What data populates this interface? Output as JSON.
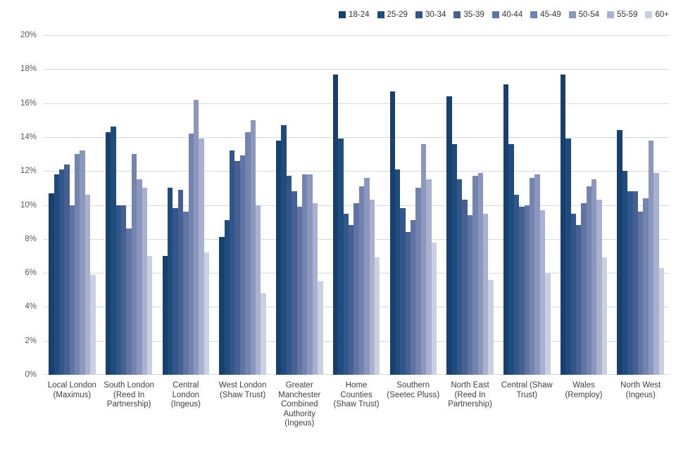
{
  "chart_data": {
    "type": "bar",
    "title": "",
    "xlabel": "",
    "ylabel": "",
    "ylim": [
      0,
      20
    ],
    "ytick_step": 2,
    "ytick_suffix": "%",
    "grid": true,
    "legend_position": "top-right",
    "gridline_color": "#d9d9d9",
    "categories": [
      "Local London (Maximus)",
      "South London (Reed In Partnership)",
      "Central London (Ingeus)",
      "West London (Shaw Trust)",
      "Greater Manchester Combined Authority (Ingeus)",
      "Home Counties (Shaw Trust)",
      "Southern (Seetec Pluss)",
      "North East (Reed In Partnership)",
      "Central (Shaw Trust)",
      "Wales (Remploy)",
      "North West (Ingeus)"
    ],
    "series": [
      {
        "name": "18-24",
        "color": "#17406e",
        "values": [
          10.7,
          14.3,
          7.0,
          8.1,
          13.8,
          17.7,
          16.7,
          16.4,
          17.1,
          17.7,
          14.4
        ]
      },
      {
        "name": "25-29",
        "color": "#1e4c7c",
        "values": [
          11.8,
          14.6,
          11.0,
          9.1,
          14.7,
          13.9,
          12.1,
          13.6,
          13.6,
          13.9,
          12.0
        ]
      },
      {
        "name": "30-34",
        "color": "#30568c",
        "values": [
          12.1,
          10.0,
          9.8,
          13.2,
          11.7,
          9.5,
          9.8,
          11.5,
          10.6,
          9.5,
          10.8
        ]
      },
      {
        "name": "35-39",
        "color": "#47608f",
        "values": [
          12.4,
          10.0,
          10.9,
          12.6,
          10.8,
          8.8,
          8.4,
          10.3,
          9.9,
          8.8,
          10.8
        ]
      },
      {
        "name": "40-44",
        "color": "#5f73a5",
        "values": [
          10.0,
          8.6,
          9.6,
          12.9,
          9.9,
          10.1,
          9.1,
          9.4,
          10.0,
          10.1,
          9.6
        ]
      },
      {
        "name": "45-49",
        "color": "#7384ae",
        "values": [
          13.0,
          13.0,
          14.2,
          14.3,
          11.8,
          11.1,
          11.0,
          11.7,
          11.6,
          11.1,
          10.4
        ]
      },
      {
        "name": "50-54",
        "color": "#8b97bd",
        "values": [
          13.2,
          11.5,
          16.2,
          15.0,
          11.8,
          11.6,
          13.6,
          11.9,
          11.8,
          11.5,
          13.8
        ]
      },
      {
        "name": "55-59",
        "color": "#a8b2d0",
        "values": [
          10.6,
          11.0,
          13.9,
          10.0,
          10.1,
          10.3,
          11.5,
          9.5,
          9.7,
          10.3,
          11.9
        ]
      },
      {
        "name": "60+",
        "color": "#c9d0e0",
        "values": [
          5.9,
          7.0,
          7.2,
          4.8,
          5.5,
          6.9,
          7.8,
          5.6,
          6.0,
          6.9,
          6.3
        ]
      }
    ]
  }
}
